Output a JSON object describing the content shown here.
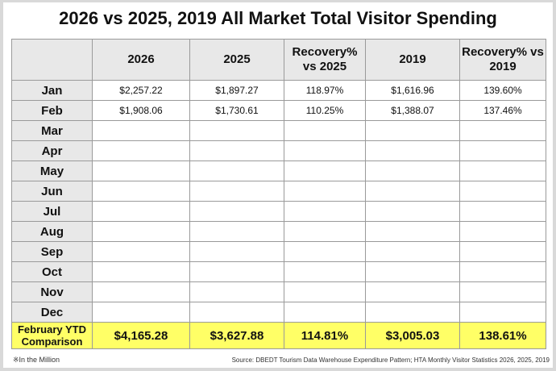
{
  "title": "2026 vs 2025, 2019 All Market Total Visitor Spending",
  "headers": [
    "",
    "2026",
    "2025",
    "Recovery% vs 2025",
    "2019",
    "Recovery% vs 2019"
  ],
  "rows": [
    {
      "month": "Jan",
      "c": [
        "$2,257.22",
        "$1,897.27",
        "118.97%",
        "$1,616.96",
        "139.60%"
      ]
    },
    {
      "month": "Feb",
      "c": [
        "$1,908.06",
        "$1,730.61",
        "110.25%",
        "$1,388.07",
        "137.46%"
      ]
    },
    {
      "month": "Mar",
      "c": [
        "",
        "",
        "",
        "",
        ""
      ]
    },
    {
      "month": "Apr",
      "c": [
        "",
        "",
        "",
        "",
        ""
      ]
    },
    {
      "month": "May",
      "c": [
        "",
        "",
        "",
        "",
        ""
      ]
    },
    {
      "month": "Jun",
      "c": [
        "",
        "",
        "",
        "",
        ""
      ]
    },
    {
      "month": "Jul",
      "c": [
        "",
        "",
        "",
        "",
        ""
      ]
    },
    {
      "month": "Aug",
      "c": [
        "",
        "",
        "",
        "",
        ""
      ]
    },
    {
      "month": "Sep",
      "c": [
        "",
        "",
        "",
        "",
        ""
      ]
    },
    {
      "month": "Oct",
      "c": [
        "",
        "",
        "",
        "",
        ""
      ]
    },
    {
      "month": "Nov",
      "c": [
        "",
        "",
        "",
        "",
        ""
      ]
    },
    {
      "month": "Dec",
      "c": [
        "",
        "",
        "",
        "",
        ""
      ]
    }
  ],
  "ytd": {
    "label": "February YTD Comparison",
    "c": [
      "$4,165.28",
      "$3,627.88",
      "114.81%",
      "$3,005.03",
      "138.61%"
    ]
  },
  "note": "※In the Million",
  "source": "Source: DBEDT Tourism Data Warehouse Expenditure Pattern; HTA Monthly Visitor Statistics 2026, 2025, 2019",
  "colors": {
    "highlight": "#ffff66",
    "header": "#e8e8e8"
  }
}
